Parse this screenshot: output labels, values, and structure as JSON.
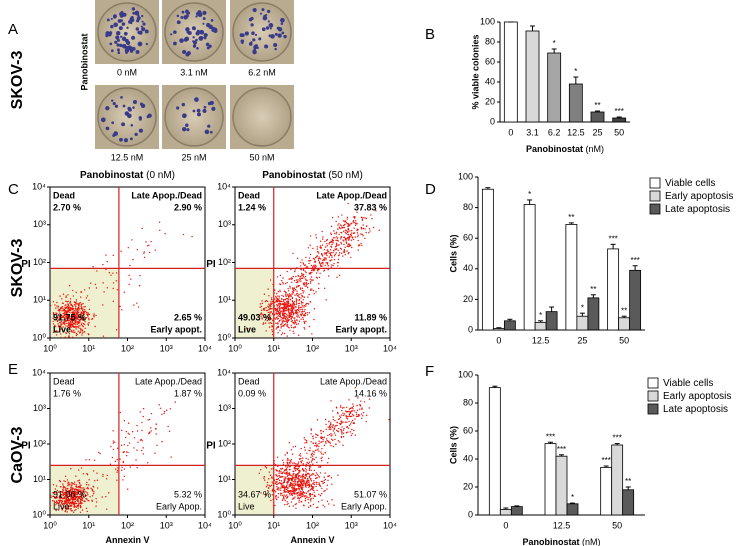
{
  "figure": {
    "panel_letters": [
      "A",
      "B",
      "C",
      "D",
      "E",
      "F"
    ],
    "cell_lines": [
      "SKOV-3",
      "SKOV-3",
      "CaOV-3"
    ],
    "colony_axis_label": "Panobinostat",
    "colony_doses": [
      "0 nM",
      "3.1 nM",
      "6.2 nM",
      "12.5 nM",
      "25 nM",
      "50 nM"
    ]
  },
  "chart_data": [
    {
      "type": "bar",
      "ylabel": "% viable colonies",
      "xlabel": "Panobinostat",
      "xlabel_unit": "(nM)",
      "categories": [
        "0",
        "3.1",
        "6.2",
        "12.5",
        "25",
        "50"
      ],
      "values": [
        100,
        91,
        69,
        38,
        10,
        4
      ],
      "errors": [
        0,
        5,
        4,
        7,
        1,
        1
      ],
      "stars": [
        null,
        null,
        "*",
        "*",
        "**",
        "***"
      ],
      "colors": [
        "#ffffff",
        "#d9d9d9",
        "#a6a6a6",
        "#808080",
        "#5a5a5a",
        "#404040"
      ],
      "ylim": [
        0,
        100
      ],
      "yticks": [
        0,
        20,
        40,
        60,
        80,
        100
      ]
    },
    {
      "type": "flow",
      "title": "Panobinostat",
      "title_dose": "(0 nM)",
      "ylabel": "PI",
      "xlim": [
        1,
        10000
      ],
      "ylim": [
        1,
        10000
      ],
      "xticks": [
        {
          "value": 1,
          "label": "10⁰"
        },
        {
          "value": 10,
          "label": "10¹"
        },
        {
          "value": 100,
          "label": "10²"
        },
        {
          "value": 1000,
          "label": "10³"
        },
        {
          "value": 10000,
          "label": "10⁴"
        }
      ],
      "yticks": [
        {
          "value": 1,
          "label": "10⁰"
        },
        {
          "value": 10,
          "label": "10¹"
        },
        {
          "value": 100,
          "label": "10²"
        },
        {
          "value": 1000,
          "label": "10³"
        },
        {
          "value": 10000,
          "label": "10⁴"
        }
      ],
      "x_gate": 60,
      "y_gate": 70,
      "quadrants": [
        {
          "name": "Dead",
          "value": 2.7,
          "value_label": "2.70 %"
        },
        {
          "name": "Late Apop./Dead",
          "value": 2.9,
          "value_label": "2.90 %"
        },
        {
          "name": "Live",
          "value": 91.75,
          "value_label": "91.75 %"
        },
        {
          "name": "Early apopt.",
          "value": 2.65,
          "value_label": "2.65 %"
        }
      ]
    },
    {
      "type": "flow",
      "title": "Panobinostat",
      "title_dose": "(50 nM)",
      "ylabel": "PI",
      "xlim": [
        1,
        10000
      ],
      "ylim": [
        1,
        10000
      ],
      "xticks": [
        {
          "value": 1,
          "label": "10⁰"
        },
        {
          "value": 10,
          "label": "10¹"
        },
        {
          "value": 100,
          "label": "10²"
        },
        {
          "value": 1000,
          "label": "10³"
        },
        {
          "value": 10000,
          "label": "10⁴"
        }
      ],
      "yticks": [
        {
          "value": 1,
          "label": "10⁰"
        },
        {
          "value": 10,
          "label": "10¹"
        },
        {
          "value": 100,
          "label": "10²"
        },
        {
          "value": 1000,
          "label": "10³"
        },
        {
          "value": 10000,
          "label": "10⁴"
        }
      ],
      "x_gate": 10,
      "y_gate": 70,
      "quadrants": [
        {
          "name": "Dead",
          "value": 1.24,
          "value_label": "1.24 %"
        },
        {
          "name": "Late Apop./Dead",
          "value": 37.83,
          "value_label": "37.83 %"
        },
        {
          "name": "Live",
          "value": 49.03,
          "value_label": "49.03 %"
        },
        {
          "name": "Early apopt.",
          "value": 11.89,
          "value_label": "11.89 %"
        }
      ]
    },
    {
      "type": "bar",
      "ylabel": "Cells (%)",
      "categories": [
        "0",
        "12.5",
        "25",
        "50"
      ],
      "series": [
        {
          "name": "Viable cells",
          "color": "#ffffff",
          "values": [
            92,
            82,
            69,
            53
          ],
          "errors": [
            1,
            3,
            1,
            3
          ],
          "stars": [
            null,
            "*",
            "**",
            "***"
          ]
        },
        {
          "name": "Early apoptosis",
          "color": "#d9d9d9",
          "values": [
            1,
            5,
            9,
            8
          ],
          "errors": [
            0.5,
            1,
            2,
            1
          ],
          "stars": [
            null,
            "*",
            "*",
            "**"
          ]
        },
        {
          "name": "Late apoptosis",
          "color": "#5a5a5a",
          "values": [
            6,
            12,
            21,
            39
          ],
          "errors": [
            1,
            3,
            2,
            3
          ],
          "stars": [
            null,
            null,
            "**",
            "***"
          ]
        }
      ],
      "ylim": [
        0,
        100
      ],
      "yticks": [
        0,
        20,
        40,
        60,
        80,
        100
      ],
      "legend": "top-right"
    },
    {
      "type": "flow",
      "ylabel": "PI",
      "xlabel": "Annexin V",
      "xlim": [
        1,
        10000
      ],
      "ylim": [
        1,
        10000
      ],
      "xticks": [
        {
          "value": 1,
          "label": "10⁰"
        },
        {
          "value": 10,
          "label": "10¹"
        },
        {
          "value": 100,
          "label": "10²"
        },
        {
          "value": 1000,
          "label": "10³"
        },
        {
          "value": 10000,
          "label": "10⁴"
        }
      ],
      "yticks": [
        {
          "value": 1,
          "label": "10⁰"
        },
        {
          "value": 10,
          "label": "10¹"
        },
        {
          "value": 100,
          "label": "10²"
        },
        {
          "value": 1000,
          "label": "10³"
        },
        {
          "value": 10000,
          "label": "10⁴"
        }
      ],
      "x_gate": 60,
      "y_gate": 25,
      "quadrants": [
        {
          "name": "Dead",
          "value": 1.76,
          "value_label": "1.76 %"
        },
        {
          "name": "Late Apop./Dead",
          "value": 1.87,
          "value_label": "1.87 %"
        },
        {
          "name": "Live",
          "value": 91.06,
          "value_label": "91.06 %"
        },
        {
          "name": "Early Apop.",
          "value": 5.32,
          "value_label": "5.32 %"
        }
      ]
    },
    {
      "type": "flow",
      "ylabel": "PI",
      "xlabel": "Annexin V",
      "xlim": [
        1,
        10000
      ],
      "ylim": [
        1,
        10000
      ],
      "xticks": [
        {
          "value": 1,
          "label": "10⁰"
        },
        {
          "value": 10,
          "label": "10¹"
        },
        {
          "value": 100,
          "label": "10²"
        },
        {
          "value": 1000,
          "label": "10³"
        },
        {
          "value": 10000,
          "label": "10⁴"
        }
      ],
      "yticks": [
        {
          "value": 1,
          "label": "10⁰"
        },
        {
          "value": 10,
          "label": "10¹"
        },
        {
          "value": 100,
          "label": "10²"
        },
        {
          "value": 1000,
          "label": "10³"
        },
        {
          "value": 10000,
          "label": "10⁴"
        }
      ],
      "x_gate": 10,
      "y_gate": 25,
      "quadrants": [
        {
          "name": "Dead",
          "value": 0.09,
          "value_label": "0.09 %"
        },
        {
          "name": "Late Apop./Dead",
          "value": 14.16,
          "value_label": "14.16 %"
        },
        {
          "name": "Live",
          "value": 34.67,
          "value_label": "34.67 %"
        },
        {
          "name": "Early Apop.",
          "value": 51.07,
          "value_label": "51.07 %"
        }
      ]
    },
    {
      "type": "bar",
      "ylabel": "Cells (%)",
      "xlabel": "Panobinostat",
      "xlabel_unit": "(nM)",
      "categories": [
        "0",
        "12.5",
        "50"
      ],
      "series": [
        {
          "name": "Viable cells",
          "color": "#ffffff",
          "values": [
            91,
            51,
            34
          ],
          "errors": [
            1,
            1,
            1
          ],
          "stars": [
            null,
            "***",
            "***"
          ]
        },
        {
          "name": "Early apoptosis",
          "color": "#d9d9d9",
          "values": [
            4,
            42,
            50
          ],
          "errors": [
            1,
            1,
            1
          ],
          "stars": [
            null,
            "***",
            "***"
          ]
        },
        {
          "name": "Late apoptosis",
          "color": "#5a5a5a",
          "values": [
            6,
            8,
            18
          ],
          "errors": [
            0.5,
            0.5,
            2
          ],
          "stars": [
            null,
            "*",
            "**"
          ]
        }
      ],
      "ylim": [
        0,
        100
      ],
      "yticks": [
        0,
        20,
        40,
        60,
        80,
        100
      ],
      "legend": "top-right"
    }
  ]
}
